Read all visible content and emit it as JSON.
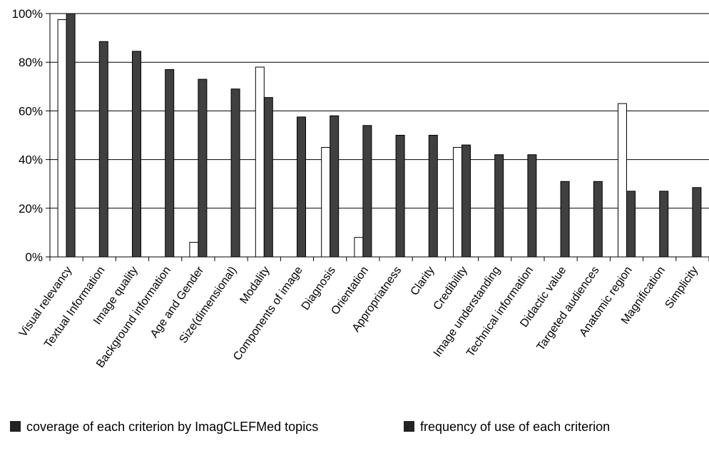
{
  "chart_data": {
    "type": "bar",
    "categories": [
      "Visual relevancy",
      "Textual Information",
      "Image quality",
      "Background information",
      "Age and Gender",
      "Size(dimensional)",
      "Modality",
      "Components of image",
      "Diagnosis",
      "Orientation",
      "Appropriatness",
      "Clarity",
      "Credibility",
      "Image understanding",
      "Technical information",
      "Didactic value",
      "Targeted audiences",
      "Anatomic region",
      "Magnification",
      "Simplicity"
    ],
    "series": [
      {
        "name": "coverage of each criterion by ImagCLEFMed topics",
        "color": "#ffffff",
        "values": [
          97.5,
          0,
          0,
          0,
          6,
          0,
          78,
          0,
          45,
          8,
          0,
          0,
          45,
          0,
          0,
          0,
          0,
          63,
          0,
          0
        ]
      },
      {
        "name": "frequency of use of each criterion",
        "color": "#404040",
        "values": [
          100,
          88.5,
          84.5,
          77,
          73,
          69,
          65.5,
          57.5,
          58,
          54,
          50,
          50,
          46,
          42,
          42,
          31,
          31,
          27,
          27,
          28.5
        ]
      }
    ],
    "yticks": [
      "0%",
      "20%",
      "40%",
      "60%",
      "80%",
      "100%"
    ],
    "ylim": [
      0,
      100
    ],
    "grid": true,
    "legend_position": "bottom"
  }
}
